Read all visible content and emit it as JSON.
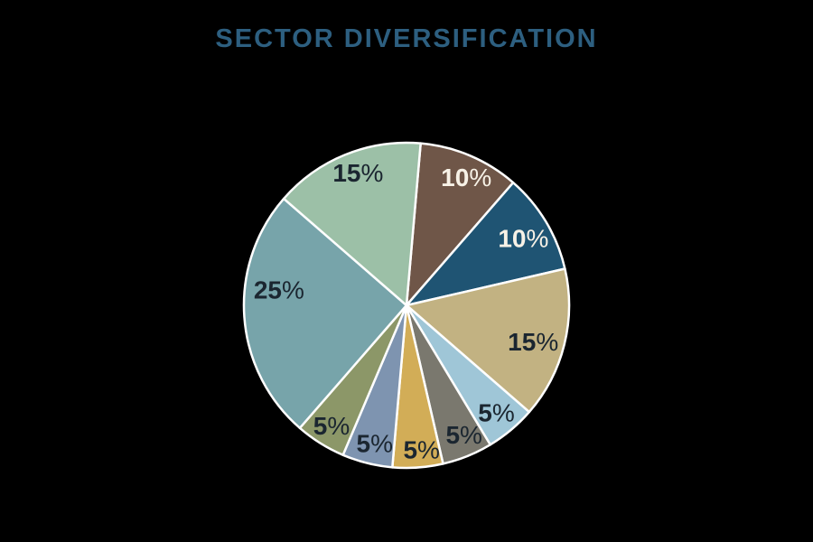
{
  "title": "SECTOR DIVERSIFICATION",
  "colors": {
    "background": "#000000",
    "title_text": "#2D5F80",
    "slice_stroke": "#FFFFFF",
    "label_dark": "#1B2630",
    "label_light": "#F7F1E6"
  },
  "chart_data": {
    "type": "pie",
    "title": "SECTOR DIVERSIFICATION",
    "unit": "%",
    "direction": "clockwise",
    "start_angle_deg": 5,
    "legend": "none",
    "total": 100,
    "slices": [
      {
        "value": 10,
        "label": "10%",
        "color": "#6F5648",
        "label_tone": "light",
        "label_angle_deg": 25,
        "label_radius": 0.87
      },
      {
        "value": 10,
        "label": "10%",
        "color": "#1F5473",
        "label_tone": "light",
        "label_angle_deg": 60,
        "label_radius": 0.83
      },
      {
        "value": 15,
        "label": "15%",
        "color": "#C2B282",
        "label_tone": "dark",
        "label_angle_deg": 106,
        "label_radius": 0.81
      },
      {
        "value": 5,
        "label": "5%",
        "color": "#9FC6D7",
        "label_tone": "dark",
        "label_angle_deg": 140,
        "label_radius": 0.86
      },
      {
        "value": 5,
        "label": "5%",
        "color": "#7A786E",
        "label_tone": "dark",
        "label_angle_deg": 156,
        "label_radius": 0.87
      },
      {
        "value": 5,
        "label": "5%",
        "color": "#D2AD57",
        "label_tone": "dark",
        "label_angle_deg": 174,
        "label_radius": 0.89
      },
      {
        "value": 5,
        "label": "5%",
        "color": "#7E94B0",
        "label_tone": "dark",
        "label_angle_deg": 193,
        "label_radius": 0.87
      },
      {
        "value": 5,
        "label": "5%",
        "color": "#8C9768",
        "label_tone": "dark",
        "label_angle_deg": 212,
        "label_radius": 0.87
      },
      {
        "value": 25,
        "label": "25%",
        "color": "#77A4AA",
        "label_tone": "dark",
        "label_angle_deg": 277,
        "label_radius": 0.79
      },
      {
        "value": 15,
        "label": "15%",
        "color": "#9CC0A7",
        "label_tone": "dark",
        "label_angle_deg": 340,
        "label_radius": 0.87
      }
    ]
  }
}
